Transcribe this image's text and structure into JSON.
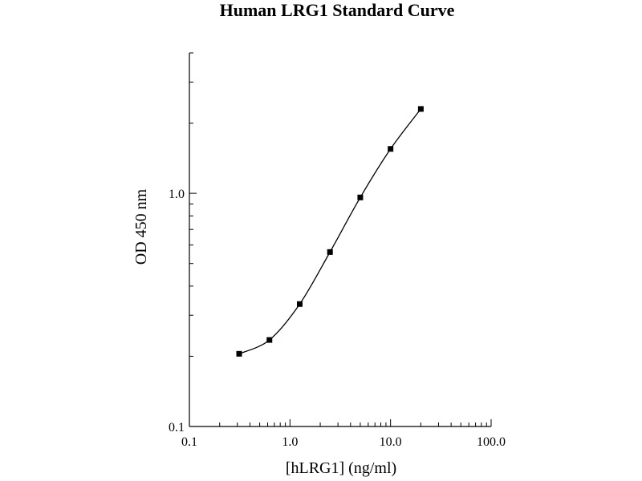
{
  "chart_data": {
    "type": "scatter",
    "title": "Human LRG1 Standard Curve",
    "xlabel": "[hLRG1] (ng/ml)",
    "ylabel": "OD 450 nm",
    "xscale": "log",
    "yscale": "log",
    "xlim": [
      0.1,
      100.0
    ],
    "ylim": [
      0.1,
      4.0
    ],
    "x_tick_labels": [
      "0.1",
      "1.0",
      "10.0",
      "100.0"
    ],
    "x_tick_values": [
      0.1,
      1.0,
      10.0,
      100.0
    ],
    "y_tick_labels": [
      "0.1",
      "1.0"
    ],
    "y_tick_values": [
      0.1,
      1.0
    ],
    "grid": false,
    "fitted_curve": true,
    "series": [
      {
        "x": [
          0.3125,
          0.625,
          1.25,
          2.5,
          5,
          10,
          20
        ],
        "y": [
          0.205,
          0.235,
          0.335,
          0.56,
          0.96,
          1.55,
          2.3
        ]
      }
    ]
  }
}
